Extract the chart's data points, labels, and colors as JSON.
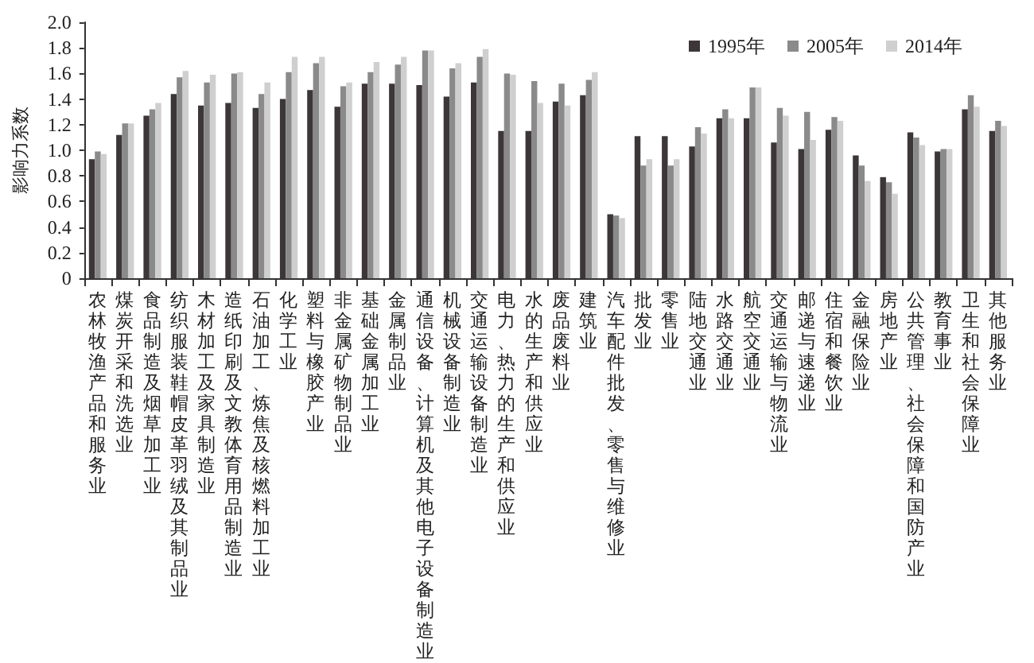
{
  "chart_data": {
    "type": "bar",
    "ylabel": "影响力系数",
    "categories": [
      "农林牧渔产品和服务业",
      "煤炭开采和洗选业",
      "食品制造及烟草加工业",
      "纺织服装鞋帽皮革羽绒及其制品业",
      "木材加工及家具制造业",
      "造纸印刷及文教体育用品制造业",
      "石油加工、炼焦及核燃料加工业",
      "化学工业",
      "塑料与橡胶产业",
      "非金属矿物制品业",
      "基础金属加工业",
      "金属制品业",
      "通信设备、计算机及其他电子设备制造业",
      "机械设备制造业",
      "交通运输设备制造业",
      "电力、热力的生产和供应业",
      "水的生产和供应业",
      "废品废料业",
      "建筑业",
      "汽车配件批发、零售与维修业",
      "批发业",
      "零售业",
      "陆地交通业",
      "水路交通业",
      "航空交通业",
      "交通运输与物流业",
      "邮递与速递业",
      "住宿和餐饮业",
      "金融保险业",
      "房地产业",
      "公共管理、社会保障和国防产业",
      "教育事业",
      "卫生和社会保障业",
      "其他服务业"
    ],
    "series": [
      {
        "name": "1995年",
        "color": "#3d3638",
        "values": [
          0.93,
          1.12,
          1.27,
          1.44,
          1.35,
          1.37,
          1.33,
          1.4,
          1.47,
          1.34,
          1.52,
          1.52,
          1.51,
          1.42,
          1.53,
          1.15,
          1.15,
          1.38,
          1.43,
          0.5,
          1.11,
          1.11,
          1.03,
          1.25,
          1.25,
          1.06,
          1.01,
          1.16,
          0.96,
          0.79,
          1.14,
          0.99,
          1.32,
          1.15
        ]
      },
      {
        "name": "2005年",
        "color": "#8a8a8a",
        "values": [
          0.99,
          1.21,
          1.32,
          1.57,
          1.53,
          1.6,
          1.44,
          1.61,
          1.68,
          1.5,
          1.61,
          1.67,
          1.78,
          1.64,
          1.73,
          1.6,
          1.54,
          1.52,
          1.55,
          0.49,
          0.88,
          0.88,
          1.18,
          1.32,
          1.49,
          1.33,
          1.3,
          1.26,
          0.88,
          0.75,
          1.1,
          1.01,
          1.43,
          1.23
        ]
      },
      {
        "name": "2014年",
        "color": "#cfcfcf",
        "values": [
          0.97,
          1.21,
          1.37,
          1.62,
          1.59,
          1.61,
          1.53,
          1.73,
          1.73,
          1.53,
          1.69,
          1.73,
          1.78,
          1.68,
          1.79,
          1.59,
          1.37,
          1.35,
          1.61,
          0.47,
          0.93,
          0.93,
          1.13,
          1.25,
          1.49,
          1.27,
          1.08,
          1.23,
          0.76,
          0.66,
          1.04,
          1.01,
          1.34,
          1.19
        ]
      }
    ],
    "ylim": [
      0,
      2.0
    ],
    "yticks": [
      {
        "value": 0,
        "label": "0"
      },
      {
        "value": 0.2,
        "label": "0.2"
      },
      {
        "value": 0.4,
        "label": "0.4"
      },
      {
        "value": 0.6,
        "label": "0.6"
      },
      {
        "value": 0.8,
        "label": "0.8"
      },
      {
        "value": 1.0,
        "label": "1.0"
      },
      {
        "value": 1.2,
        "label": "1.2"
      },
      {
        "value": 1.4,
        "label": "1.4"
      },
      {
        "value": 1.6,
        "label": "1.6"
      },
      {
        "value": 1.8,
        "label": "1.8"
      },
      {
        "value": 2.0,
        "label": "2.0"
      }
    ],
    "grid": false,
    "legend": "top right"
  }
}
